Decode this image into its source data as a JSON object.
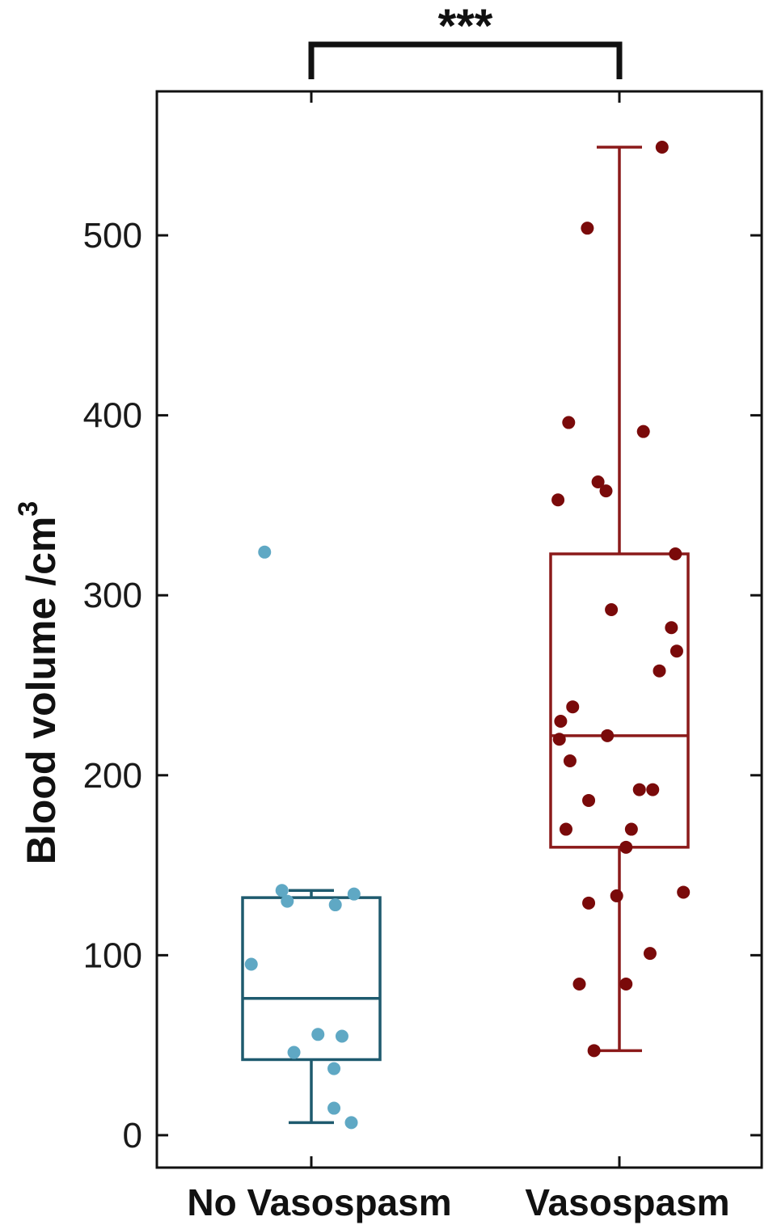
{
  "chart_data": {
    "type": "box",
    "ylabel": "Blood volume /cm",
    "ylabel_superscript": "3",
    "yticks": [
      0,
      100,
      200,
      300,
      400,
      500
    ],
    "yticklabels": [
      "0",
      "100",
      "200",
      "300",
      "400",
      "500"
    ],
    "ylim": [
      -18,
      580
    ],
    "grid": false,
    "categories": [
      "No Vasospasm",
      "Vasospasm"
    ],
    "significance": {
      "between": [
        "No Vasospasm",
        "Vasospasm"
      ],
      "label": "***"
    },
    "groups": [
      {
        "category": "No Vasospasm",
        "color": "#1e5a6e",
        "point_color": "#5fa8c4",
        "whisker_low": 7,
        "q1": 42,
        "median": 76,
        "q3": 132,
        "whisker_high": 136,
        "points": [
          {
            "offset": -0.35,
            "y": 324
          },
          {
            "offset": -0.22,
            "y": 136
          },
          {
            "offset": -0.18,
            "y": 130
          },
          {
            "offset": 0.18,
            "y": 128
          },
          {
            "offset": 0.32,
            "y": 134
          },
          {
            "offset": -0.45,
            "y": 95
          },
          {
            "offset": 0.05,
            "y": 56
          },
          {
            "offset": 0.23,
            "y": 55
          },
          {
            "offset": -0.13,
            "y": 46
          },
          {
            "offset": 0.17,
            "y": 37
          },
          {
            "offset": 0.17,
            "y": 15
          },
          {
            "offset": 0.3,
            "y": 7
          }
        ]
      },
      {
        "category": "Vasospasm",
        "color": "#8b1a1a",
        "point_color": "#7a0a0a",
        "whisker_low": 47,
        "q1": 160,
        "median": 222,
        "q3": 323,
        "whisker_high": 549,
        "points": [
          {
            "offset": 0.32,
            "y": 549
          },
          {
            "offset": -0.24,
            "y": 504
          },
          {
            "offset": -0.38,
            "y": 396
          },
          {
            "offset": 0.18,
            "y": 391
          },
          {
            "offset": -0.16,
            "y": 363
          },
          {
            "offset": -0.1,
            "y": 358
          },
          {
            "offset": -0.46,
            "y": 353
          },
          {
            "offset": 0.42,
            "y": 323
          },
          {
            "offset": -0.06,
            "y": 292
          },
          {
            "offset": 0.39,
            "y": 282
          },
          {
            "offset": 0.43,
            "y": 269
          },
          {
            "offset": 0.3,
            "y": 258
          },
          {
            "offset": -0.35,
            "y": 238
          },
          {
            "offset": -0.44,
            "y": 230
          },
          {
            "offset": -0.45,
            "y": 220
          },
          {
            "offset": -0.09,
            "y": 222
          },
          {
            "offset": -0.37,
            "y": 208
          },
          {
            "offset": 0.15,
            "y": 192
          },
          {
            "offset": 0.25,
            "y": 192
          },
          {
            "offset": -0.23,
            "y": 186
          },
          {
            "offset": -0.4,
            "y": 170
          },
          {
            "offset": 0.09,
            "y": 170
          },
          {
            "offset": 0.05,
            "y": 160
          },
          {
            "offset": 0.48,
            "y": 135
          },
          {
            "offset": -0.02,
            "y": 133
          },
          {
            "offset": -0.23,
            "y": 129
          },
          {
            "offset": 0.23,
            "y": 101
          },
          {
            "offset": -0.3,
            "y": 84
          },
          {
            "offset": 0.05,
            "y": 84
          },
          {
            "offset": -0.19,
            "y": 47
          }
        ]
      }
    ]
  }
}
